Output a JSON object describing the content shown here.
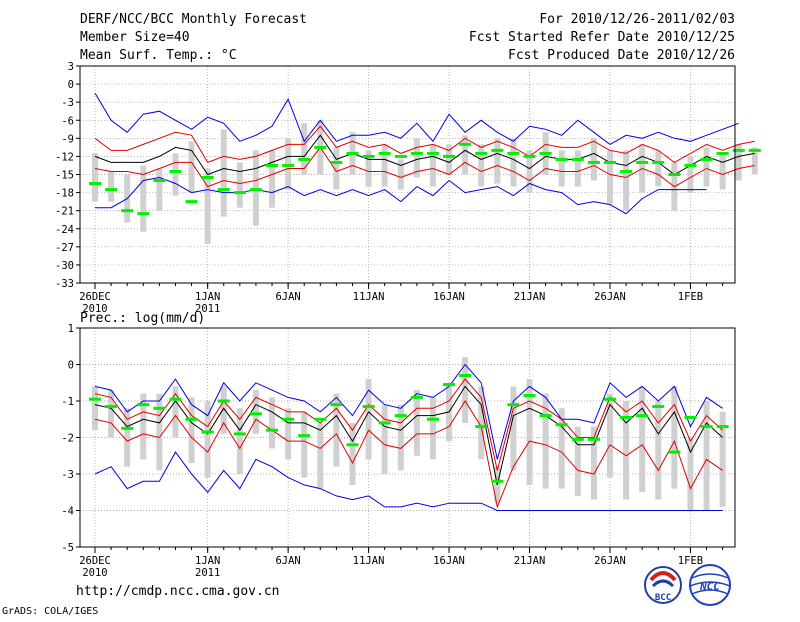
{
  "header": {
    "title_left": "DERF/NCC/BCC Monthly Forecast",
    "member_size": "Member Size=40",
    "variable": "Mean Surf. Temp.: °C",
    "for_range": "For 2010/12/26-2011/02/03",
    "fcst_started": "Fcst Started Refer Date 2010/12/25",
    "fcst_produced": "Fcst Produced Date 2010/12/26"
  },
  "footer": {
    "url": "http://cmdp.ncc.cma.gov.cn",
    "grads": "GrADS: COLA/IGES",
    "logo_bcc": "BCC",
    "logo_ncc": "NCC"
  },
  "colors": {
    "mean": "#000000",
    "spread": "#e00000",
    "extreme": "#0000e0",
    "box": "#d0d0d0",
    "climate": "#00f000",
    "grid": "#999999",
    "axis": "#000000"
  },
  "chart_data": [
    {
      "type": "line",
      "name": "temperature",
      "title": "Mean Surf. Temp.: °C",
      "x_day_start": 1,
      "x_day_end": 40,
      "ylim": [
        -33,
        3
      ],
      "yticks": [
        3,
        0,
        -3,
        -6,
        -9,
        -12,
        -15,
        -18,
        -21,
        -24,
        -27,
        -30,
        -33
      ],
      "xticks": [
        {
          "day": 1,
          "label": "26DEC",
          "sub": "2010"
        },
        {
          "day": 8,
          "label": "1JAN",
          "sub": "2011"
        },
        {
          "day": 13,
          "label": "6JAN",
          "sub": ""
        },
        {
          "day": 18,
          "label": "11JAN",
          "sub": ""
        },
        {
          "day": 23,
          "label": "16JAN",
          "sub": ""
        },
        {
          "day": 28,
          "label": "21JAN",
          "sub": ""
        },
        {
          "day": 33,
          "label": "26JAN",
          "sub": ""
        },
        {
          "day": 38,
          "label": "1FEB",
          "sub": ""
        }
      ],
      "series": [
        {
          "name": "ensemble mean",
          "role": "mean",
          "values": [
            -12,
            -13,
            -13,
            -13,
            -12,
            -10.5,
            -11,
            -15,
            -14,
            -14.5,
            -14,
            -13,
            -12,
            -12,
            -8.5,
            -12.5,
            -11.5,
            -12.5,
            -12.5,
            -13.5,
            -12.5,
            -12,
            -13,
            -11,
            -12.5,
            -11.5,
            -12.5,
            -14,
            -12,
            -12.5,
            -12.5,
            -11.5,
            -13,
            -13.5,
            -12,
            -13,
            -15,
            -13.5,
            -12,
            -13,
            -12,
            -11.5
          ]
        },
        {
          "name": "upper spread",
          "role": "spread",
          "values": [
            -9,
            -11,
            -11,
            -10,
            -9,
            -8,
            -8.5,
            -13,
            -12,
            -12.5,
            -12,
            -11,
            -10,
            -10,
            -7,
            -10.5,
            -9.5,
            -10.5,
            -10,
            -11.5,
            -10.5,
            -10,
            -11,
            -9,
            -10.5,
            -9.5,
            -10.5,
            -12,
            -10,
            -10.5,
            -10.5,
            -9.5,
            -11,
            -11.5,
            -10,
            -11,
            -13,
            -11.5,
            -10,
            -11,
            -10,
            -9.5
          ]
        },
        {
          "name": "lower spread",
          "role": "spread",
          "values": [
            -14,
            -14.5,
            -14.5,
            -15,
            -14,
            -13,
            -13,
            -17,
            -16,
            -16.5,
            -16,
            -15,
            -14,
            -14,
            -10.5,
            -14.5,
            -13.5,
            -14.5,
            -14.5,
            -15.5,
            -14.5,
            -14,
            -15,
            -13,
            -14.5,
            -13.5,
            -14.5,
            -16,
            -14,
            -14.5,
            -14.5,
            -13.5,
            -15,
            -15.5,
            -14,
            -15,
            -17,
            -15.5,
            -14,
            -15,
            -14,
            -13.5
          ]
        },
        {
          "name": "ensemble max",
          "role": "extreme",
          "values": [
            -1.5,
            -6,
            -8,
            -5,
            -4.5,
            -6,
            -7.5,
            -5.5,
            -6.5,
            -9.5,
            -8.5,
            -7,
            -2.5,
            -9.5,
            -6,
            -9.5,
            -8.5,
            -8.5,
            -8,
            -9,
            -6.5,
            -9.5,
            -5,
            -8,
            -6,
            -8,
            -9.5,
            -7,
            -7.5,
            -8.5,
            -6,
            -8,
            -10,
            -8.5,
            -9,
            -8,
            -9,
            -9.5,
            -8.5,
            -7.5,
            -6.5
          ]
        },
        {
          "name": "ensemble min",
          "role": "extreme",
          "values": [
            -20.5,
            -20.5,
            -19,
            -16,
            -15.5,
            -16.5,
            -18,
            -17.5,
            -18,
            -18,
            -17.5,
            -18,
            -17,
            -18.5,
            -17.5,
            -18.5,
            -17.5,
            -18.5,
            -17.5,
            -19.5,
            -17,
            -18.5,
            -16,
            -18,
            -17.5,
            -17,
            -18.5,
            -16.5,
            -17.5,
            -18,
            -20,
            -19.5,
            -20,
            -21.5,
            -19,
            -17.5,
            -17.5,
            -17.5,
            -17.5
          ]
        }
      ],
      "boxes": {
        "top": [
          -11.5,
          -14.5,
          -15,
          -13.5,
          -14,
          -11.5,
          -9.5,
          -14,
          -7.5,
          -13,
          -11,
          -11,
          -9,
          -6.5,
          -6,
          -10.5,
          -8,
          -11,
          -10,
          -12.5,
          -9,
          -10,
          -10,
          -8.5,
          -10,
          -9,
          -9,
          -11,
          -8,
          -11,
          -11,
          -9,
          -11,
          -11,
          -10,
          -11,
          -13,
          -12,
          -10.5,
          -11.5,
          -10,
          -10.5
        ],
        "bottom": [
          -19.5,
          -19.5,
          -23,
          -24.5,
          -21,
          -18.5,
          -18,
          -26.5,
          -22,
          -20.5,
          -23.5,
          -20.5,
          -17.5,
          -15,
          -15,
          -17.5,
          -15,
          -17,
          -17,
          -17.5,
          -15.5,
          -17,
          -15,
          -15,
          -17,
          -16.5,
          -17,
          -18,
          -15,
          -17,
          -17,
          -16,
          -20,
          -21,
          -18,
          -17,
          -21,
          -18,
          -17,
          -17.5,
          -16,
          -15
        ]
      },
      "climate": [
        -16.5,
        -17.5,
        -21,
        -21.5,
        -16,
        -14.5,
        -19.5,
        -15.5,
        -17.5,
        -18,
        -17.5,
        -13.5,
        -13.5,
        -12.5,
        -10.5,
        -13,
        -11.5,
        -12,
        -11.5,
        -12,
        -11.5,
        -11.5,
        -12,
        -10,
        -11.5,
        -11,
        -11.5,
        -12,
        -11.5,
        -12.5,
        -12.5,
        -13,
        -13,
        -14.5,
        -13,
        -13,
        -15,
        -13.5,
        -12.5,
        -11.5,
        -11,
        -11
      ]
    },
    {
      "type": "line",
      "name": "precipitation",
      "title": "Prec.: log(mm/d)",
      "x_day_start": 1,
      "x_day_end": 40,
      "ylim": [
        -5,
        1
      ],
      "yticks": [
        1,
        0,
        -1,
        -2,
        -3,
        -4,
        -5
      ],
      "xticks": [
        {
          "day": 1,
          "label": "26DEC",
          "sub": "2010"
        },
        {
          "day": 8,
          "label": "1JAN",
          "sub": "2011"
        },
        {
          "day": 13,
          "label": "6JAN",
          "sub": ""
        },
        {
          "day": 18,
          "label": "11JAN",
          "sub": ""
        },
        {
          "day": 23,
          "label": "16JAN",
          "sub": ""
        },
        {
          "day": 28,
          "label": "21JAN",
          "sub": ""
        },
        {
          "day": 33,
          "label": "26JAN",
          "sub": ""
        },
        {
          "day": 38,
          "label": "1FEB",
          "sub": ""
        }
      ],
      "series": [
        {
          "name": "ensemble mean",
          "role": "mean",
          "values": [
            -1.1,
            -1.2,
            -1.7,
            -1.5,
            -1.6,
            -1.0,
            -1.6,
            -1.9,
            -1.2,
            -1.8,
            -1.1,
            -1.3,
            -1.6,
            -1.6,
            -1.8,
            -1.4,
            -2.1,
            -1.3,
            -1.7,
            -1.8,
            -1.4,
            -1.4,
            -1.3,
            -0.6,
            -1.1,
            -3.3,
            -1.4,
            -1.2,
            -1.4,
            -1.7,
            -2.2,
            -2.2,
            -1.1,
            -1.6,
            -1.2,
            -1.9,
            -1.3,
            -2.4,
            -1.6,
            -2.0
          ]
        },
        {
          "name": "upper spread",
          "role": "spread",
          "values": [
            -0.8,
            -0.9,
            -1.5,
            -1.3,
            -1.4,
            -0.8,
            -1.4,
            -1.7,
            -1.0,
            -1.5,
            -0.9,
            -1.1,
            -1.3,
            -1.3,
            -1.6,
            -1.2,
            -1.8,
            -1.1,
            -1.5,
            -1.6,
            -1.2,
            -1.2,
            -1.0,
            -0.4,
            -0.9,
            -2.9,
            -1.2,
            -1.0,
            -1.2,
            -1.5,
            -2.0,
            -2.0,
            -0.9,
            -1.3,
            -1.0,
            -1.6,
            -1.1,
            -2.1,
            -1.4,
            -1.8
          ]
        },
        {
          "name": "lower spread",
          "role": "spread",
          "values": [
            -1.5,
            -1.6,
            -2.1,
            -1.9,
            -2.0,
            -1.4,
            -2.0,
            -2.4,
            -1.6,
            -2.3,
            -1.5,
            -1.8,
            -2.1,
            -2.1,
            -2.3,
            -1.9,
            -2.7,
            -1.8,
            -2.2,
            -2.3,
            -1.9,
            -1.9,
            -1.7,
            -1.0,
            -1.7,
            -3.9,
            -2.8,
            -2.1,
            -2.2,
            -2.4,
            -2.9,
            -3.0,
            -2.2,
            -2.5,
            -2.2,
            -2.9,
            -2.1,
            -3.4,
            -2.6,
            -2.9
          ]
        },
        {
          "name": "ensemble max",
          "role": "extreme",
          "values": [
            -0.6,
            -0.7,
            -1.3,
            -1.0,
            -1.0,
            -0.4,
            -1.1,
            -1.4,
            -0.5,
            -1.0,
            -0.5,
            -0.7,
            -0.9,
            -1.0,
            -1.3,
            -0.9,
            -1.4,
            -0.7,
            -1.1,
            -1.2,
            -0.8,
            -0.9,
            -0.6,
            0.0,
            -0.5,
            -2.6,
            -1.0,
            -0.6,
            -0.9,
            -1.5,
            -1.5,
            -1.6,
            -0.5,
            -0.9,
            -0.6,
            -1.0,
            -0.6,
            -1.7,
            -0.9,
            -1.2
          ]
        },
        {
          "name": "ensemble min",
          "role": "extreme",
          "values": [
            -3.0,
            -2.8,
            -3.4,
            -3.2,
            -3.2,
            -2.4,
            -3.0,
            -3.5,
            -2.9,
            -3.4,
            -2.6,
            -2.8,
            -3.1,
            -3.3,
            -3.4,
            -3.6,
            -3.7,
            -3.6,
            -3.9,
            -3.9,
            -3.8,
            -3.9,
            -3.8,
            -3.8,
            -3.8,
            -4.0,
            -4.0,
            -4.0,
            -4.0,
            -4.0,
            -4.0,
            -4.0,
            -4.0,
            -4.0,
            -4.0,
            -4.0,
            -4.0,
            -4.0,
            -4.0,
            -4.0
          ]
        }
      ],
      "boxes": {
        "top": [
          -0.6,
          -0.7,
          -1.2,
          -0.8,
          -0.8,
          -0.6,
          -0.9,
          -1.0,
          -0.6,
          -1.2,
          -0.7,
          -0.9,
          -1.2,
          -1.3,
          -1.6,
          -0.8,
          -1.6,
          -0.4,
          -1.1,
          -1.1,
          -0.7,
          -0.9,
          -0.5,
          0.2,
          -0.6,
          -2.8,
          -0.6,
          -0.4,
          -0.8,
          -1.2,
          -1.7,
          -1.7,
          -0.8,
          -1.0,
          -0.6,
          -1.0,
          -0.6,
          -2.0,
          -1.0,
          -1.3
        ],
        "bottom": [
          -1.8,
          -2.0,
          -2.8,
          -2.6,
          -2.9,
          -2.0,
          -2.7,
          -3.1,
          -1.9,
          -3.0,
          -1.9,
          -2.3,
          -2.6,
          -3.1,
          -3.4,
          -2.8,
          -3.3,
          -2.6,
          -3.0,
          -2.9,
          -2.5,
          -2.6,
          -2.1,
          -1.6,
          -2.6,
          -3.8,
          -2.9,
          -3.3,
          -3.4,
          -3.4,
          -3.6,
          -3.7,
          -3.1,
          -3.7,
          -3.5,
          -3.7,
          -3.4,
          -4.0,
          -4.0,
          -3.9
        ]
      },
      "climate": [
        -0.95,
        -1.15,
        -1.75,
        -1.1,
        -1.2,
        -0.95,
        -1.5,
        -1.85,
        -1.0,
        -1.9,
        -1.35,
        -1.8,
        -1.5,
        -1.95,
        -1.5,
        -1.1,
        -2.2,
        -1.15,
        -1.6,
        -1.4,
        -0.9,
        -1.5,
        -0.55,
        -0.3,
        -1.7,
        -3.2,
        -1.1,
        -0.85,
        -1.4,
        -1.65,
        -2.05,
        -2.05,
        -0.95,
        -1.45,
        -1.4,
        -1.15,
        -2.4,
        -1.45,
        -1.7,
        -1.7
      ]
    }
  ]
}
